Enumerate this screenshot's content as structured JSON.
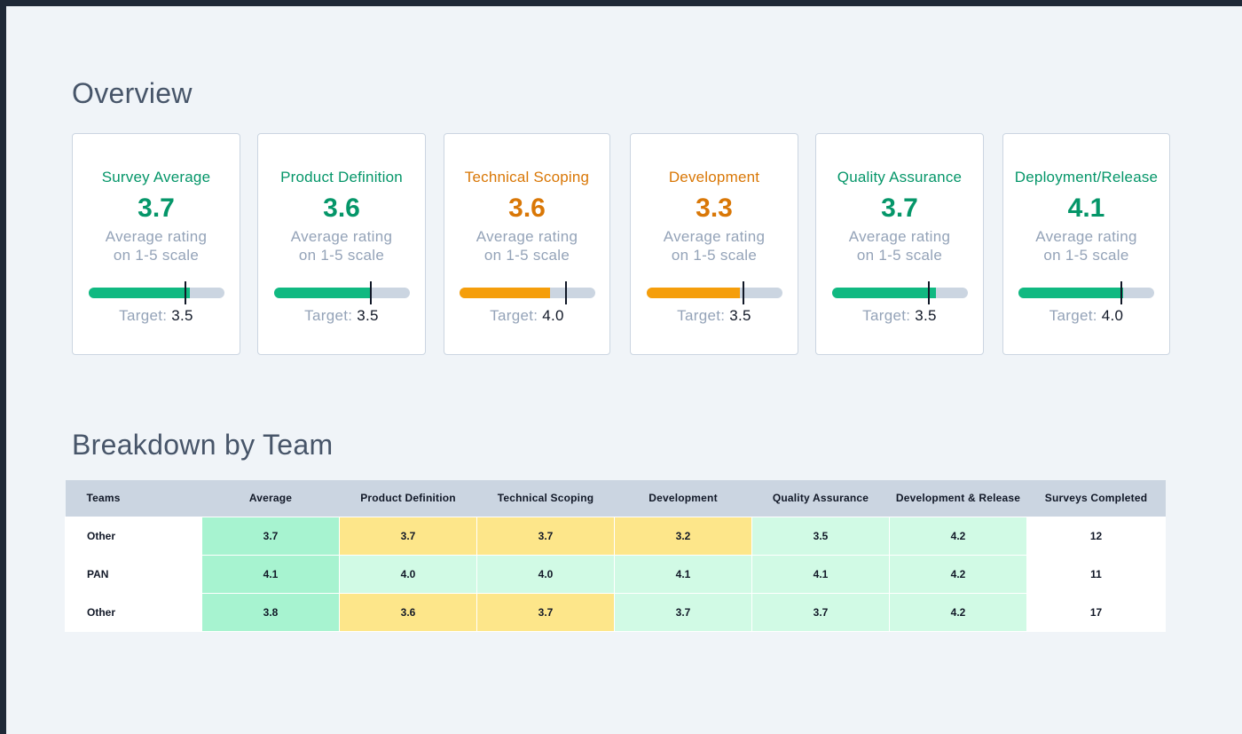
{
  "overview": {
    "title": "Overview",
    "cards": [
      {
        "title": "Survey Average",
        "value": "3.7",
        "subtitle_line1": "Average rating",
        "subtitle_line2": "on 1-5 scale",
        "target_label": "Target:",
        "target_value": "3.5",
        "fill": 0.75,
        "target_pos": 0.71,
        "status": "green"
      },
      {
        "title": "Product Definition",
        "value": "3.6",
        "subtitle_line1": "Average rating",
        "subtitle_line2": "on 1-5 scale",
        "target_label": "Target:",
        "target_value": "3.5",
        "fill": 0.72,
        "target_pos": 0.71,
        "status": "green"
      },
      {
        "title": "Technical Scoping",
        "value": "3.6",
        "subtitle_line1": "Average rating",
        "subtitle_line2": "on 1-5 scale",
        "target_label": "Target:",
        "target_value": "4.0",
        "fill": 0.67,
        "target_pos": 0.78,
        "status": "orange"
      },
      {
        "title": "Development",
        "value": "3.3",
        "subtitle_line1": "Average rating",
        "subtitle_line2": "on 1-5 scale",
        "target_label": "Target:",
        "target_value": "3.5",
        "fill": 0.69,
        "target_pos": 0.71,
        "status": "orange"
      },
      {
        "title": "Quality Assurance",
        "value": "3.7",
        "subtitle_line1": "Average rating",
        "subtitle_line2": "on 1-5 scale",
        "target_label": "Target:",
        "target_value": "3.5",
        "fill": 0.77,
        "target_pos": 0.71,
        "status": "green"
      },
      {
        "title": "Deployment/Release",
        "value": "4.1",
        "subtitle_line1": "Average rating",
        "subtitle_line2": "on 1-5 scale",
        "target_label": "Target:",
        "target_value": "4.0",
        "fill": 0.77,
        "target_pos": 0.75,
        "status": "green"
      }
    ]
  },
  "breakdown": {
    "title": "Breakdown by Team",
    "columns": [
      "Teams",
      "Average",
      "Product Definition",
      "Technical Scoping",
      "Development",
      "Quality Assurance",
      "Development & Release",
      "Surveys Completed"
    ],
    "rows": [
      {
        "team": "Other",
        "cells": [
          {
            "v": "3.7",
            "h": "strong"
          },
          {
            "v": "3.7",
            "h": "yellow"
          },
          {
            "v": "3.7",
            "h": "yellow"
          },
          {
            "v": "3.2",
            "h": "yellow"
          },
          {
            "v": "3.5",
            "h": "light"
          },
          {
            "v": "4.2",
            "h": "light"
          }
        ],
        "surveys": "12"
      },
      {
        "team": "PAN",
        "cells": [
          {
            "v": "4.1",
            "h": "strong"
          },
          {
            "v": "4.0",
            "h": "light"
          },
          {
            "v": "4.0",
            "h": "light"
          },
          {
            "v": "4.1",
            "h": "light"
          },
          {
            "v": "4.1",
            "h": "light"
          },
          {
            "v": "4.2",
            "h": "light"
          }
        ],
        "surveys": "11"
      },
      {
        "team": "Other",
        "cells": [
          {
            "v": "3.8",
            "h": "strong"
          },
          {
            "v": "3.6",
            "h": "yellow"
          },
          {
            "v": "3.7",
            "h": "yellow"
          },
          {
            "v": "3.7",
            "h": "light"
          },
          {
            "v": "3.7",
            "h": "light"
          },
          {
            "v": "4.2",
            "h": "light"
          }
        ],
        "surveys": "17"
      }
    ]
  }
}
